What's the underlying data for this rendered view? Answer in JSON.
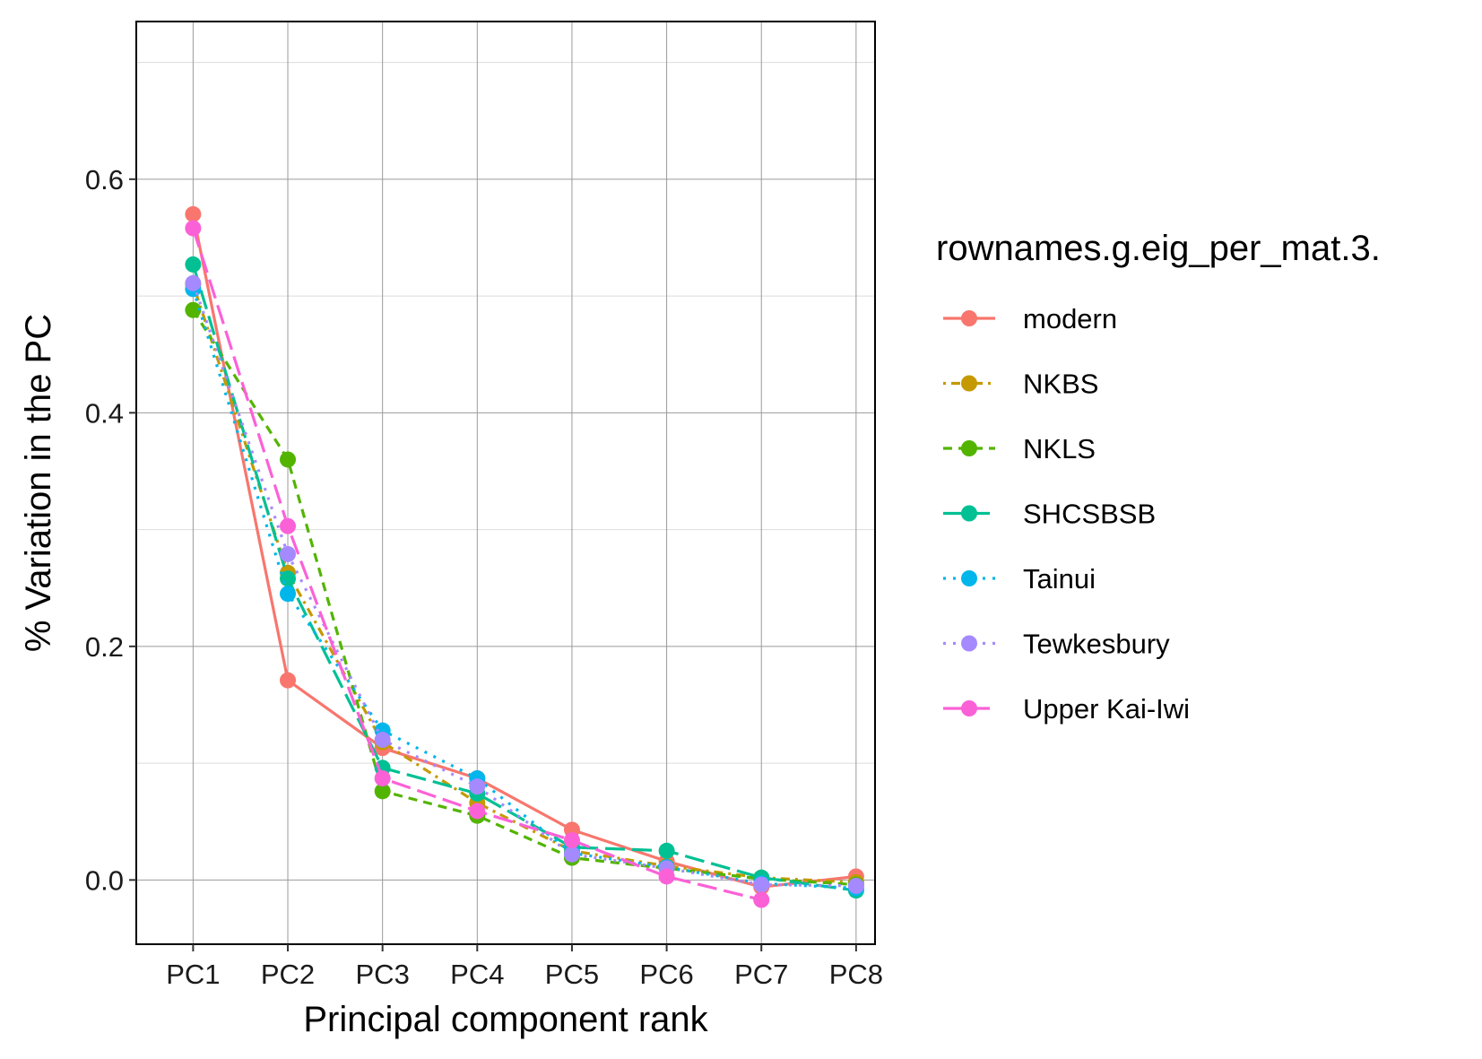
{
  "chart_data": {
    "type": "line",
    "xlabel": "Principal component rank",
    "ylabel": "% Variation in the PC",
    "categories": [
      "PC1",
      "PC2",
      "PC3",
      "PC4",
      "PC5",
      "PC6",
      "PC7",
      "PC8"
    ],
    "ylim": [
      -0.055,
      0.735
    ],
    "yticks": [
      0.0,
      0.2,
      0.4,
      0.6
    ],
    "ytick_labels": [
      "0.0",
      "0.2",
      "0.4",
      "0.6"
    ],
    "grid": true,
    "legend": {
      "title": "rownames.g.eig_per_mat.3.",
      "placement": "right"
    },
    "series": [
      {
        "name": "modern",
        "color": "#F8766D",
        "dash": "solid",
        "values": [
          0.57,
          0.171,
          0.113,
          0.087,
          0.043,
          0.016,
          -0.006,
          0.003
        ]
      },
      {
        "name": "NKBS",
        "color": "#C49A00",
        "dash": "dotted-dash",
        "values": [
          0.51,
          0.263,
          0.118,
          0.066,
          0.025,
          0.012,
          0.002,
          -0.002
        ]
      },
      {
        "name": "NKLS",
        "color": "#53B400",
        "dash": "dashed",
        "values": [
          0.488,
          0.36,
          0.076,
          0.055,
          0.019,
          0.01,
          0.001,
          -0.004
        ]
      },
      {
        "name": "SHCSBSB",
        "color": "#00C094",
        "dash": "longdash",
        "values": [
          0.527,
          0.258,
          0.096,
          0.074,
          0.028,
          0.025,
          0.002,
          -0.009
        ]
      },
      {
        "name": "Tainui",
        "color": "#00B6EB",
        "dash": "dotted",
        "values": [
          0.506,
          0.245,
          0.128,
          0.087,
          0.023,
          0.011,
          -0.003,
          -0.007
        ]
      },
      {
        "name": "Tewkesbury",
        "color": "#A58AFF",
        "dash": "dotted",
        "values": [
          0.511,
          0.279,
          0.12,
          0.08,
          0.022,
          0.01,
          -0.004,
          -0.005
        ]
      },
      {
        "name": "Upper Kai-Iwi",
        "color": "#FB61D7",
        "dash": "longdash",
        "values": [
          0.558,
          0.303,
          0.087,
          0.059,
          0.034,
          0.003,
          -0.017,
          null
        ]
      }
    ]
  }
}
